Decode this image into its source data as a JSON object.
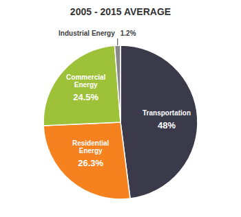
{
  "chart_data": {
    "type": "pie",
    "title": "2005 - 2015 AVERAGE",
    "categories": [
      "Transportation",
      "Residential\nEnergy",
      "Commercial\nEnergy",
      "Industrial Energy"
    ],
    "values": [
      48.0,
      26.3,
      24.5,
      1.2
    ],
    "value_labels": [
      "48%",
      "26.3%",
      "24.5%",
      "1.2%"
    ],
    "colors": [
      "#3a3a4a",
      "#f5821f",
      "#9dc23a",
      "#888888"
    ],
    "data_labels": true
  }
}
